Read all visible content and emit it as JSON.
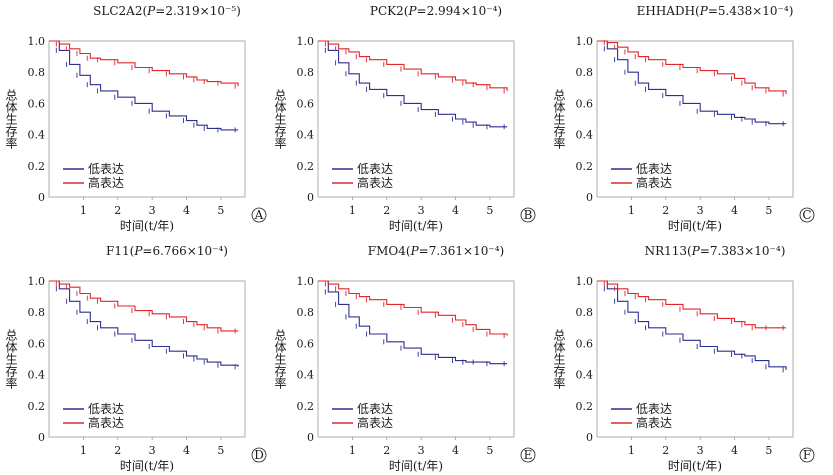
{
  "figure": {
    "legend_labels": [
      "低表达",
      "高表达"
    ],
    "colors": {
      "low": "#2d2f8f",
      "high": "#e0262a",
      "axis": "#999999",
      "text": "#1a1a1a"
    }
  },
  "chart_data": [
    {
      "type": "line",
      "panel": "A",
      "title": "SLC2A2(P=2.319×10⁻⁵)",
      "title_gene": "SLC2A2",
      "title_p": "2.319×10⁻⁵",
      "xlabel": "时间(t/年)",
      "ylabel": "总体生存率",
      "xlim": [
        0,
        5.7
      ],
      "ylim": [
        0,
        1.0
      ],
      "xticks": [
        1,
        2,
        3,
        4,
        5
      ],
      "yticks": [
        0,
        0.2,
        0.4,
        0.6,
        0.8,
        1.0
      ],
      "ytick_labels": [
        "0",
        "0.2",
        "0.4",
        "0.6",
        "0.8",
        "1.0"
      ],
      "grid": false,
      "legend_position": "bottom-left",
      "series": [
        {
          "name": "低表达",
          "color": "#2d2f8f",
          "x": [
            0,
            0.3,
            0.6,
            0.9,
            1.2,
            1.5,
            2.0,
            2.5,
            3.0,
            3.5,
            4.0,
            4.3,
            4.6,
            5.0,
            5.5
          ],
          "y": [
            1.0,
            0.94,
            0.85,
            0.78,
            0.72,
            0.68,
            0.64,
            0.6,
            0.55,
            0.52,
            0.49,
            0.46,
            0.44,
            0.43,
            0.43
          ]
        },
        {
          "name": "高表达",
          "color": "#e0262a",
          "x": [
            0,
            0.3,
            0.6,
            0.9,
            1.2,
            1.5,
            2.0,
            2.5,
            3.0,
            3.5,
            4.0,
            4.3,
            4.6,
            5.0,
            5.5
          ],
          "y": [
            1.0,
            0.98,
            0.95,
            0.92,
            0.89,
            0.88,
            0.86,
            0.83,
            0.81,
            0.79,
            0.77,
            0.75,
            0.74,
            0.73,
            0.71
          ]
        }
      ]
    },
    {
      "type": "line",
      "panel": "B",
      "title": "PCK2(P=2.994×10⁻⁴)",
      "title_gene": "PCK2",
      "title_p": "2.994×10⁻⁴",
      "xlabel": "时间(t/年)",
      "ylabel": "总体生存率",
      "xlim": [
        0,
        5.7
      ],
      "ylim": [
        0,
        1.0
      ],
      "xticks": [
        1,
        2,
        3,
        4,
        5
      ],
      "yticks": [
        0,
        0.2,
        0.4,
        0.6,
        0.8,
        1.0
      ],
      "ytick_labels": [
        "0",
        "0.2",
        "0.4",
        "0.6",
        "0.8",
        "1.0"
      ],
      "grid": false,
      "legend_position": "bottom-left",
      "series": [
        {
          "name": "低表达",
          "color": "#2d2f8f",
          "x": [
            0,
            0.3,
            0.6,
            0.9,
            1.2,
            1.5,
            2.0,
            2.5,
            3.0,
            3.5,
            4.0,
            4.3,
            4.6,
            5.0,
            5.5
          ],
          "y": [
            1.0,
            0.94,
            0.86,
            0.79,
            0.73,
            0.69,
            0.65,
            0.6,
            0.56,
            0.53,
            0.5,
            0.48,
            0.46,
            0.45,
            0.45
          ]
        },
        {
          "name": "高表达",
          "color": "#e0262a",
          "x": [
            0,
            0.3,
            0.6,
            0.9,
            1.2,
            1.5,
            2.0,
            2.5,
            3.0,
            3.5,
            4.0,
            4.3,
            4.6,
            5.0,
            5.5
          ],
          "y": [
            1.0,
            0.98,
            0.95,
            0.93,
            0.9,
            0.88,
            0.85,
            0.82,
            0.79,
            0.77,
            0.75,
            0.73,
            0.72,
            0.7,
            0.68
          ]
        }
      ]
    },
    {
      "type": "line",
      "panel": "C",
      "title": "EHHADH(P=5.438×10⁻⁴)",
      "title_gene": "EHHADH",
      "title_p": "5.438×10⁻⁴",
      "xlabel": "时间(t/年)",
      "ylabel": "总体生存率",
      "xlim": [
        0,
        5.7
      ],
      "ylim": [
        0,
        1.0
      ],
      "xticks": [
        1,
        2,
        3,
        4,
        5
      ],
      "yticks": [
        0,
        0.2,
        0.4,
        0.6,
        0.8,
        1.0
      ],
      "ytick_labels": [
        "0",
        "0.2",
        "0.4",
        "0.6",
        "0.8",
        "1.0"
      ],
      "grid": false,
      "legend_position": "bottom-left",
      "series": [
        {
          "name": "低表达",
          "color": "#2d2f8f",
          "x": [
            0,
            0.3,
            0.6,
            0.9,
            1.2,
            1.5,
            2.0,
            2.5,
            3.0,
            3.5,
            4.0,
            4.3,
            4.6,
            5.0,
            5.5
          ],
          "y": [
            1.0,
            0.95,
            0.88,
            0.8,
            0.73,
            0.69,
            0.65,
            0.6,
            0.55,
            0.53,
            0.51,
            0.5,
            0.48,
            0.47,
            0.47
          ]
        },
        {
          "name": "高表达",
          "color": "#e0262a",
          "x": [
            0,
            0.3,
            0.6,
            0.9,
            1.2,
            1.5,
            2.0,
            2.5,
            3.0,
            3.5,
            4.0,
            4.3,
            4.6,
            5.0,
            5.5
          ],
          "y": [
            1.0,
            0.99,
            0.96,
            0.93,
            0.9,
            0.88,
            0.85,
            0.83,
            0.81,
            0.79,
            0.76,
            0.73,
            0.7,
            0.68,
            0.66
          ]
        }
      ]
    },
    {
      "type": "line",
      "panel": "D",
      "title": "F11(P=6.766×10⁻⁴)",
      "title_gene": "F11",
      "title_p": "6.766×10⁻⁴",
      "xlabel": "时间(t/年)",
      "ylabel": "总体生存率",
      "xlim": [
        0,
        5.7
      ],
      "ylim": [
        0,
        1.0
      ],
      "xticks": [
        1,
        2,
        3,
        4,
        5
      ],
      "yticks": [
        0,
        0.2,
        0.4,
        0.6,
        0.8,
        1.0
      ],
      "ytick_labels": [
        "0",
        "0.2",
        "0.4",
        "0.6",
        "0.8",
        "1.0"
      ],
      "grid": false,
      "legend_position": "bottom-left",
      "series": [
        {
          "name": "低表达",
          "color": "#2d2f8f",
          "x": [
            0,
            0.3,
            0.6,
            0.9,
            1.2,
            1.5,
            2.0,
            2.5,
            3.0,
            3.5,
            4.0,
            4.3,
            4.6,
            5.0,
            5.5
          ],
          "y": [
            1.0,
            0.95,
            0.87,
            0.8,
            0.74,
            0.7,
            0.66,
            0.62,
            0.58,
            0.55,
            0.52,
            0.5,
            0.48,
            0.46,
            0.45
          ]
        },
        {
          "name": "高表达",
          "color": "#e0262a",
          "x": [
            0,
            0.3,
            0.6,
            0.9,
            1.2,
            1.5,
            2.0,
            2.5,
            3.0,
            3.5,
            4.0,
            4.3,
            4.6,
            5.0,
            5.5
          ],
          "y": [
            1.0,
            0.98,
            0.96,
            0.92,
            0.89,
            0.87,
            0.84,
            0.81,
            0.79,
            0.77,
            0.74,
            0.72,
            0.7,
            0.68,
            0.68
          ]
        }
      ]
    },
    {
      "type": "line",
      "panel": "E",
      "title": "FMO4(P=7.361×10⁻⁴)",
      "title_gene": "FMO4",
      "title_p": "7.361×10⁻⁴",
      "xlabel": "时间(t/年)",
      "ylabel": "总体生存率",
      "xlim": [
        0,
        5.7
      ],
      "ylim": [
        0,
        1.0
      ],
      "xticks": [
        1,
        2,
        3,
        4,
        5
      ],
      "yticks": [
        0,
        0.2,
        0.4,
        0.6,
        0.8,
        1.0
      ],
      "ytick_labels": [
        "0",
        "0.2",
        "0.4",
        "0.6",
        "0.8",
        "1.0"
      ],
      "grid": false,
      "legend_position": "bottom-left",
      "series": [
        {
          "name": "低表达",
          "color": "#2d2f8f",
          "x": [
            0,
            0.3,
            0.6,
            0.9,
            1.2,
            1.5,
            2.0,
            2.5,
            3.0,
            3.5,
            4.0,
            4.3,
            4.6,
            5.0,
            5.5
          ],
          "y": [
            1.0,
            0.93,
            0.85,
            0.77,
            0.71,
            0.66,
            0.61,
            0.57,
            0.53,
            0.51,
            0.49,
            0.48,
            0.48,
            0.47,
            0.47
          ]
        },
        {
          "name": "高表达",
          "color": "#e0262a",
          "x": [
            0,
            0.3,
            0.6,
            0.9,
            1.2,
            1.5,
            2.0,
            2.5,
            3.0,
            3.5,
            4.0,
            4.3,
            4.6,
            5.0,
            5.5
          ],
          "y": [
            1.0,
            0.98,
            0.95,
            0.92,
            0.9,
            0.88,
            0.85,
            0.83,
            0.8,
            0.78,
            0.75,
            0.72,
            0.69,
            0.66,
            0.65
          ]
        }
      ]
    },
    {
      "type": "line",
      "panel": "F",
      "title": "NR113(P=7.383×10⁻⁴)",
      "title_gene": "NR113",
      "title_p": "7.383×10⁻⁴",
      "xlabel": "时间(t/年)",
      "ylabel": "总体生存率",
      "xlim": [
        0,
        5.7
      ],
      "ylim": [
        0,
        1.0
      ],
      "xticks": [
        1,
        2,
        3,
        4,
        5
      ],
      "yticks": [
        0,
        0.2,
        0.4,
        0.6,
        0.8,
        1.0
      ],
      "ytick_labels": [
        "0",
        "0.2",
        "0.4",
        "0.6",
        "0.8",
        "1.0"
      ],
      "grid": false,
      "legend_position": "bottom-left",
      "series": [
        {
          "name": "低表达",
          "color": "#2d2f8f",
          "x": [
            0,
            0.3,
            0.6,
            0.9,
            1.2,
            1.5,
            2.0,
            2.5,
            3.0,
            3.5,
            4.0,
            4.3,
            4.6,
            5.0,
            5.5
          ],
          "y": [
            1.0,
            0.95,
            0.87,
            0.8,
            0.74,
            0.7,
            0.66,
            0.62,
            0.58,
            0.55,
            0.53,
            0.52,
            0.49,
            0.45,
            0.43
          ]
        },
        {
          "name": "高表达",
          "color": "#e0262a",
          "x": [
            0,
            0.3,
            0.6,
            0.9,
            1.2,
            1.5,
            2.0,
            2.5,
            3.0,
            3.5,
            4.0,
            4.3,
            4.6,
            5.0,
            5.5
          ],
          "y": [
            1.0,
            0.98,
            0.95,
            0.92,
            0.9,
            0.88,
            0.85,
            0.82,
            0.79,
            0.76,
            0.74,
            0.72,
            0.7,
            0.7,
            0.7
          ]
        }
      ]
    }
  ]
}
